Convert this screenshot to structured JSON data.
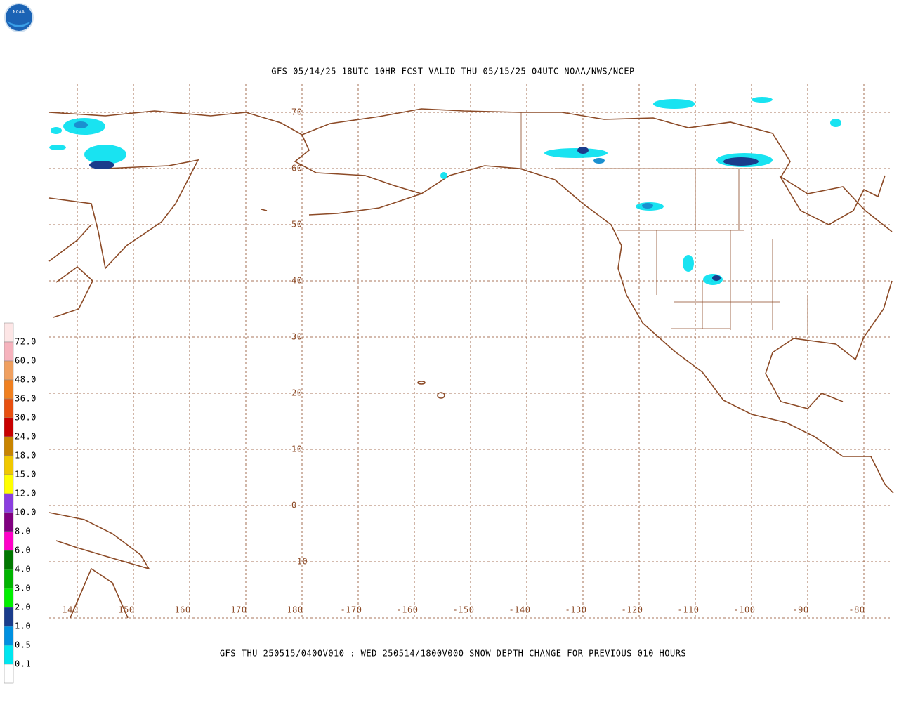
{
  "title": "GFS 05/14/25 18UTC 10HR FCST VALID THU 05/15/25 04UTC NOAA/NWS/NCEP",
  "logo": "NOAA",
  "caption": "GFS THU 250515/0400V010 : WED 250514/1800V000 SNOW DEPTH CHANGE FOR PREVIOUS 010 HOURS",
  "lat_labels": [
    "70",
    "60",
    "50",
    "40",
    "30",
    "20",
    "10",
    "0",
    "-10"
  ],
  "lon_labels": [
    "140",
    "150",
    "160",
    "170",
    "180",
    "-170",
    "-160",
    "-150",
    "-140",
    "-130",
    "-120",
    "-110",
    "-100",
    "-90",
    "-80"
  ],
  "legend": {
    "labels": [
      "72.0",
      "60.0",
      "48.0",
      "36.0",
      "30.0",
      "24.0",
      "18.0",
      "15.0",
      "12.0",
      "10.0",
      "8.0",
      "6.0",
      "4.0",
      "3.0",
      "2.0",
      "1.0",
      "0.5",
      "0.1"
    ],
    "colors": [
      "#fde6e6",
      "#f6b3bd",
      "#f0a060",
      "#f08020",
      "#e85010",
      "#c80000",
      "#c88400",
      "#f0c800",
      "#ffff00",
      "#8a3ee0",
      "#800080",
      "#ff00c8",
      "#007800",
      "#00b400",
      "#00f000",
      "#1a3c8c",
      "#0090e0",
      "#00e6f0",
      "#ffffff"
    ]
  }
}
